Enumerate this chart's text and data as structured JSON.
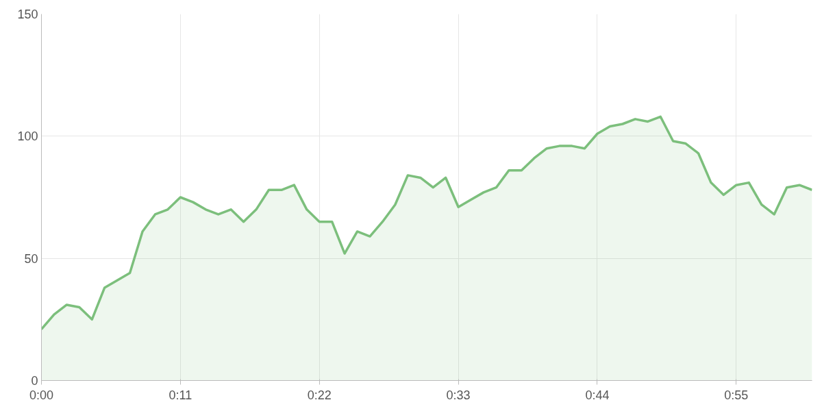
{
  "chart_data": {
    "type": "area",
    "x": [
      0,
      1,
      2,
      3,
      4,
      5,
      6,
      7,
      8,
      9,
      10,
      11,
      12,
      13,
      14,
      15,
      16,
      17,
      18,
      19,
      20,
      21,
      22,
      23,
      24,
      25,
      26,
      27,
      28,
      29,
      30,
      31,
      32,
      33,
      34,
      35,
      36,
      37,
      38,
      39,
      40,
      41,
      42,
      43,
      44,
      45,
      46,
      47,
      48,
      49,
      50,
      51,
      52,
      53,
      54,
      55,
      56,
      57,
      58,
      59,
      60,
      61
    ],
    "series": [
      {
        "color": "#7cbf7c",
        "values": [
          21,
          27,
          31,
          30,
          25,
          38,
          41,
          44,
          61,
          68,
          70,
          75,
          73,
          70,
          68,
          70,
          65,
          70,
          78,
          78,
          80,
          70,
          65,
          65,
          52,
          61,
          59,
          65,
          72,
          84,
          83,
          79,
          83,
          71,
          74,
          77,
          79,
          86,
          86,
          91,
          95,
          96,
          96,
          95,
          101,
          104,
          105,
          107,
          106,
          108,
          98,
          97,
          93,
          81,
          76,
          80,
          81,
          72,
          68,
          79,
          80,
          78
        ]
      }
    ],
    "xlim": [
      0,
      61
    ],
    "xticks": [
      {
        "value": 0,
        "label": "0:00"
      },
      {
        "value": 11,
        "label": "0:11"
      },
      {
        "value": 22,
        "label": "0:22"
      },
      {
        "value": 33,
        "label": "0:33"
      },
      {
        "value": 44,
        "label": "0:44"
      },
      {
        "value": 55,
        "label": "0:55"
      }
    ],
    "ylim": [
      0,
      150
    ],
    "yticks": [
      0,
      50,
      100,
      150
    ],
    "grid": true,
    "marker": "none"
  }
}
